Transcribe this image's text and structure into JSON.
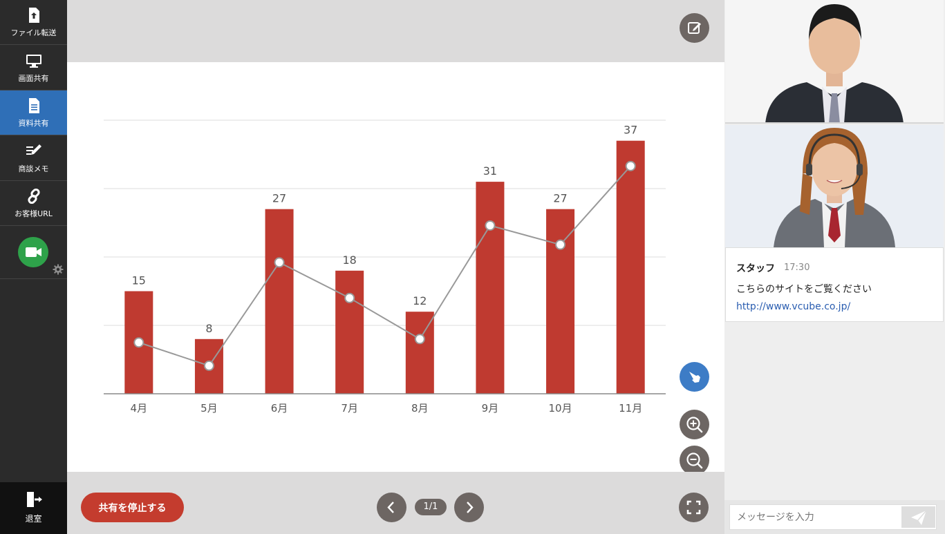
{
  "sidebar": {
    "items": [
      {
        "label": "ファイル転送",
        "icon": "file-upload-icon"
      },
      {
        "label": "画面共有",
        "icon": "monitor-icon"
      },
      {
        "label": "資料共有",
        "icon": "document-icon"
      },
      {
        "label": "商談メモ",
        "icon": "memo-pen-icon"
      },
      {
        "label": "お客様URL",
        "icon": "link-icon"
      }
    ],
    "active_index": 2,
    "exit_label": "退室",
    "camera_color": "#2ea24a"
  },
  "controls": {
    "stop_share_label": "共有を停止する",
    "page_indicator": "1/1"
  },
  "chart_data": {
    "type": "bar",
    "categories": [
      "4月",
      "5月",
      "6月",
      "7月",
      "8月",
      "9月",
      "10月",
      "11月"
    ],
    "series": [
      {
        "type": "bar",
        "values": [
          15,
          8,
          27,
          18,
          12,
          31,
          27,
          37
        ],
        "color": "#bf3a30"
      },
      {
        "type": "line",
        "values": [
          7.5,
          4.1,
          19.2,
          14.0,
          8.0,
          24.6,
          21.8,
          33.3
        ],
        "color": "#999999"
      }
    ],
    "data_labels": [
      "15",
      "8",
      "27",
      "18",
      "12",
      "31",
      "27",
      "37"
    ],
    "ylim": [
      0,
      40
    ],
    "grid": true
  },
  "chat": {
    "messages": [
      {
        "sender": "スタッフ",
        "time": "17:30",
        "text": "こちらのサイトをご覧ください",
        "link": "http://www.vcube.co.jp/"
      }
    ],
    "input_placeholder": "メッセージを入力"
  }
}
